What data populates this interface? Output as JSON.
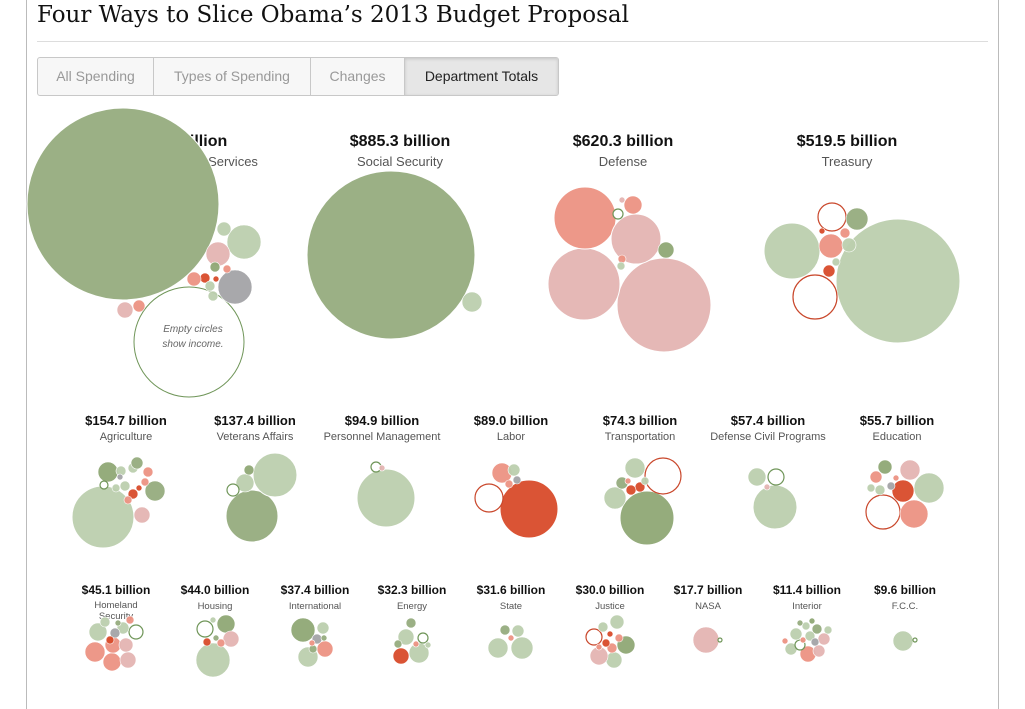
{
  "page": {
    "title": "Four Ways to Slice Obama’s 2013 Budget Proposal"
  },
  "tabs": [
    {
      "label": "All Spending",
      "active": false
    },
    {
      "label": "Types of Spending",
      "active": false
    },
    {
      "label": "Changes",
      "active": false
    },
    {
      "label": "Department Totals",
      "active": true
    }
  ],
  "note": {
    "line1": "Empty circles",
    "line2": "show income."
  },
  "colors": {
    "dark_green": "#8fa875",
    "green": "#9bb085",
    "light_green": "#bccfae",
    "pale_red": "#e4b4b2",
    "salmon": "#ec9283",
    "red": "#d84b2a",
    "gray": "#a3a3a7",
    "income_stroke": "#6f9558"
  },
  "chart_data": {
    "type": "bubble",
    "units": "billion dollars",
    "departments": [
      {
        "name": "Health and Human Services",
        "label": "$921.6 billion",
        "value": 921.6
      },
      {
        "name": "Social Security",
        "label": "$885.3 billion",
        "value": 885.3
      },
      {
        "name": "Defense",
        "label": "$620.3 billion",
        "value": 620.3
      },
      {
        "name": "Treasury",
        "label": "$519.5 billion",
        "value": 519.5
      },
      {
        "name": "Agriculture",
        "label": "$154.7 billion",
        "value": 154.7
      },
      {
        "name": "Veterans Affairs",
        "label": "$137.4 billion",
        "value": 137.4
      },
      {
        "name": "Personnel Management",
        "label": "$94.9 billion",
        "value": 94.9
      },
      {
        "name": "Labor",
        "label": "$89.0 billion",
        "value": 89.0
      },
      {
        "name": "Transportation",
        "label": "$74.3 billion",
        "value": 74.3
      },
      {
        "name": "Defense Civil Programs",
        "label": "$57.4 billion",
        "value": 57.4
      },
      {
        "name": "Education",
        "label": "$55.7 billion",
        "value": 55.7
      },
      {
        "name": "Homeland Security",
        "label": "$45.1 billion",
        "value": 45.1
      },
      {
        "name": "Housing",
        "label": "$44.0 billion",
        "value": 44.0
      },
      {
        "name": "International",
        "label": "$37.4 billion",
        "value": 37.4
      },
      {
        "name": "Energy",
        "label": "$32.3 billion",
        "value": 32.3
      },
      {
        "name": "State",
        "label": "$31.6 billion",
        "value": 31.6
      },
      {
        "name": "Justice",
        "label": "$30.0 billion",
        "value": 30.0
      },
      {
        "name": "NASA",
        "label": "$17.7 billion",
        "value": 17.7
      },
      {
        "name": "Interior",
        "label": "$11.4 billion",
        "value": 11.4
      },
      {
        "name": "F.C.C.",
        "label": "$9.6 billion",
        "value": 9.6
      }
    ]
  }
}
